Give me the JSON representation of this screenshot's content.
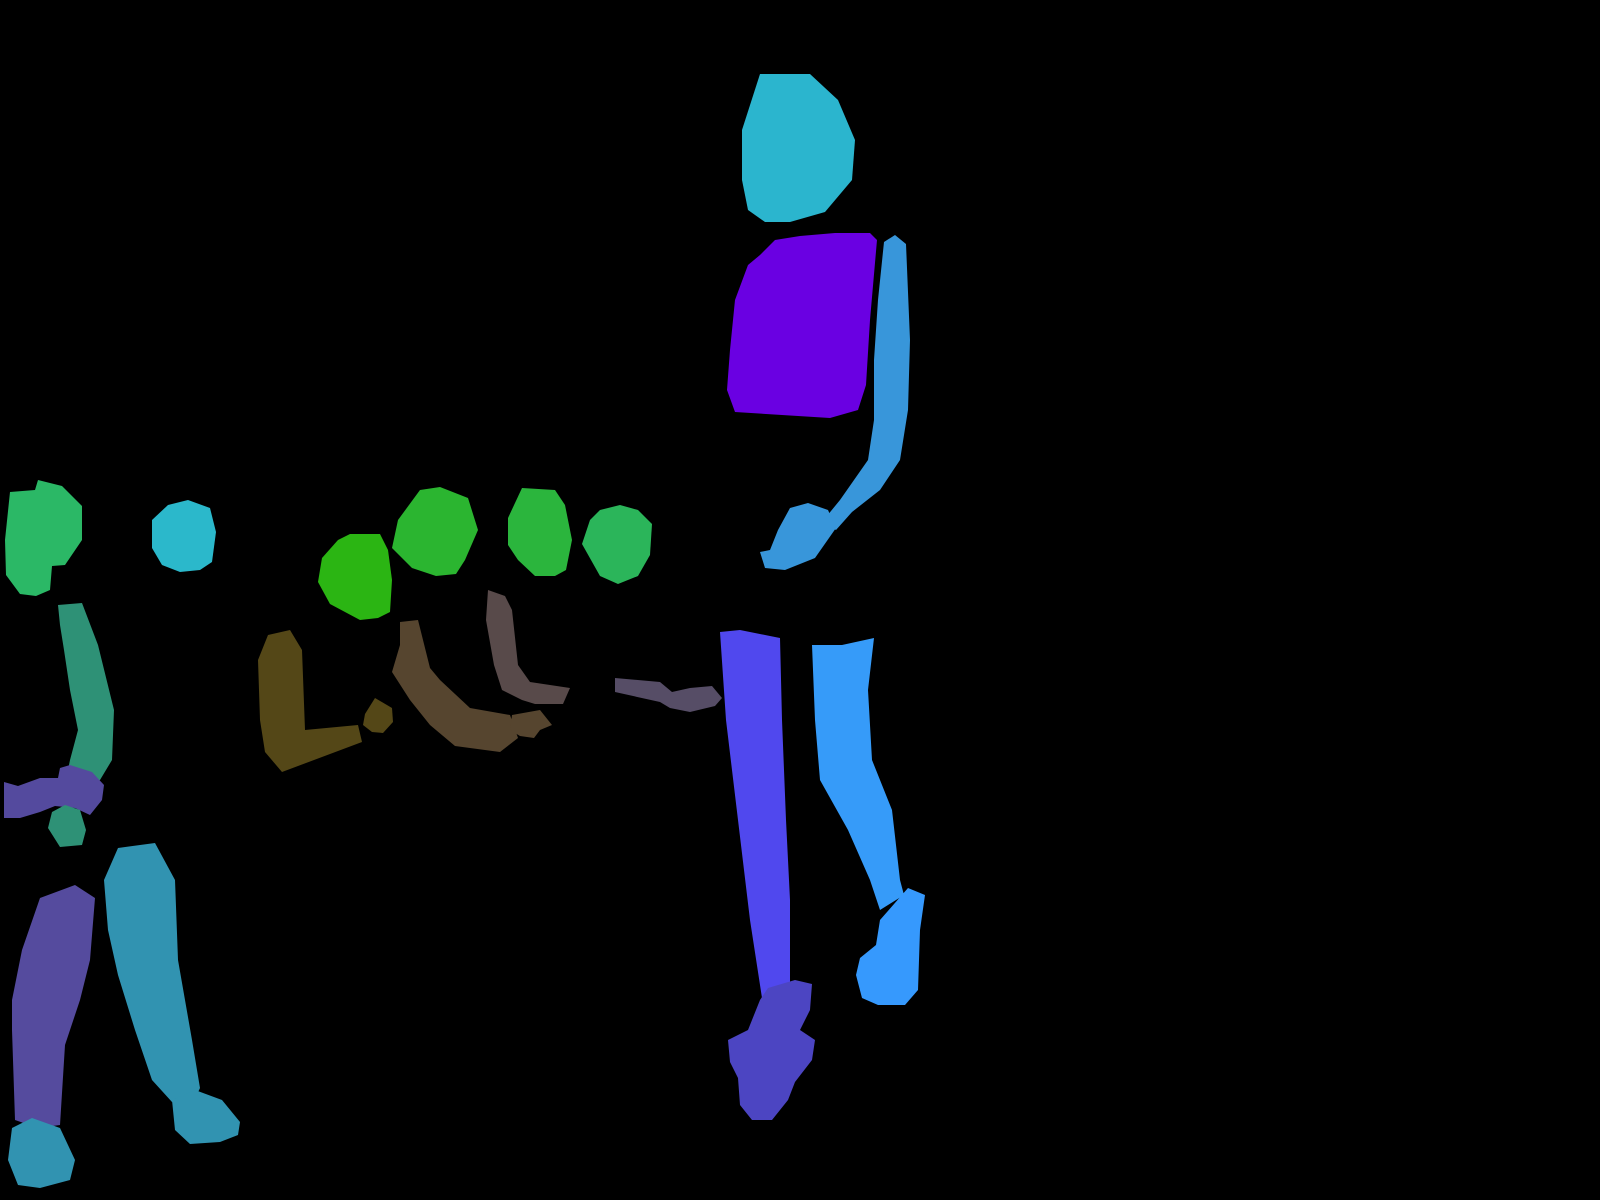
{
  "image": {
    "kind": "body-part segmentation mask",
    "background_color": "#000000"
  },
  "figures": [
    {
      "name": "tall-person",
      "parts": [
        {
          "part": "head",
          "color": "#2BB5CE"
        },
        {
          "part": "torso",
          "color": "#6A00E2"
        },
        {
          "part": "right-arm",
          "color": "#3896DA"
        },
        {
          "part": "right-hand",
          "color": "#3896DA"
        },
        {
          "part": "left-leg",
          "color": "#5048EE"
        },
        {
          "part": "left-foot",
          "color": "#4C45C2"
        },
        {
          "part": "right-leg",
          "color": "#369BF9"
        },
        {
          "part": "right-foot",
          "color": "#3699FD"
        },
        {
          "part": "held-object",
          "color": "#564D66"
        }
      ]
    },
    {
      "name": "left-person",
      "parts": [
        {
          "part": "head",
          "color": "#2BB866"
        },
        {
          "part": "arm",
          "color": "#2E9176"
        },
        {
          "part": "hands",
          "color": "#544A9E"
        },
        {
          "part": "left-leg",
          "color": "#554B9E"
        },
        {
          "part": "right-leg",
          "color": "#3193B1"
        },
        {
          "part": "feet",
          "color": "#3193B1"
        }
      ]
    },
    {
      "name": "small-head",
      "parts": [
        {
          "part": "head",
          "color": "#2BB8CB"
        }
      ]
    },
    {
      "name": "seated-group",
      "parts": [
        {
          "part": "head-1",
          "color": "#2BB513"
        },
        {
          "part": "head-2",
          "color": "#2BB530"
        },
        {
          "part": "head-3",
          "color": "#2BB53D"
        },
        {
          "part": "head-4",
          "color": "#2BB55A"
        },
        {
          "part": "arm-1",
          "color": "#544717"
        },
        {
          "part": "arm-2",
          "color": "#56452F"
        },
        {
          "part": "arm-3",
          "color": "#584A4A"
        }
      ]
    }
  ]
}
